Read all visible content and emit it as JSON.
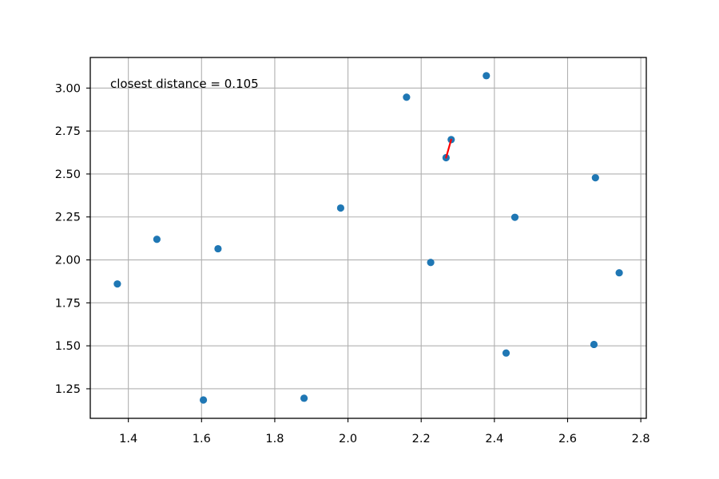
{
  "chart_data": {
    "type": "scatter",
    "title": "",
    "xlabel": "",
    "ylabel": "",
    "xlim": [
      1.296,
      2.815
    ],
    "ylim": [
      1.078,
      3.178
    ],
    "grid": true,
    "x_ticks": [
      "1.4",
      "1.6",
      "1.8",
      "2.0",
      "2.2",
      "2.4",
      "2.6",
      "2.8"
    ],
    "y_ticks": [
      "1.25",
      "1.50",
      "1.75",
      "2.00",
      "2.25",
      "2.50",
      "2.75",
      "3.00"
    ],
    "points": [
      {
        "x": 1.37,
        "y": 1.86
      },
      {
        "x": 1.478,
        "y": 2.12
      },
      {
        "x": 1.605,
        "y": 1.185
      },
      {
        "x": 1.645,
        "y": 2.065
      },
      {
        "x": 1.88,
        "y": 1.195
      },
      {
        "x": 1.98,
        "y": 2.302
      },
      {
        "x": 2.16,
        "y": 2.947
      },
      {
        "x": 2.226,
        "y": 1.985
      },
      {
        "x": 2.268,
        "y": 2.595
      },
      {
        "x": 2.282,
        "y": 2.7
      },
      {
        "x": 2.378,
        "y": 3.072
      },
      {
        "x": 2.432,
        "y": 1.458
      },
      {
        "x": 2.456,
        "y": 2.248
      },
      {
        "x": 2.672,
        "y": 1.508
      },
      {
        "x": 2.676,
        "y": 2.478
      },
      {
        "x": 2.741,
        "y": 1.925
      }
    ],
    "closest_pair": [
      {
        "x": 2.268,
        "y": 2.595
      },
      {
        "x": 2.282,
        "y": 2.7
      }
    ],
    "annotation": "closest distance = 0.105",
    "colors": {
      "points": "#1f77b4",
      "pair_line": "#ff0000",
      "grid": "#b0b0b0"
    }
  }
}
